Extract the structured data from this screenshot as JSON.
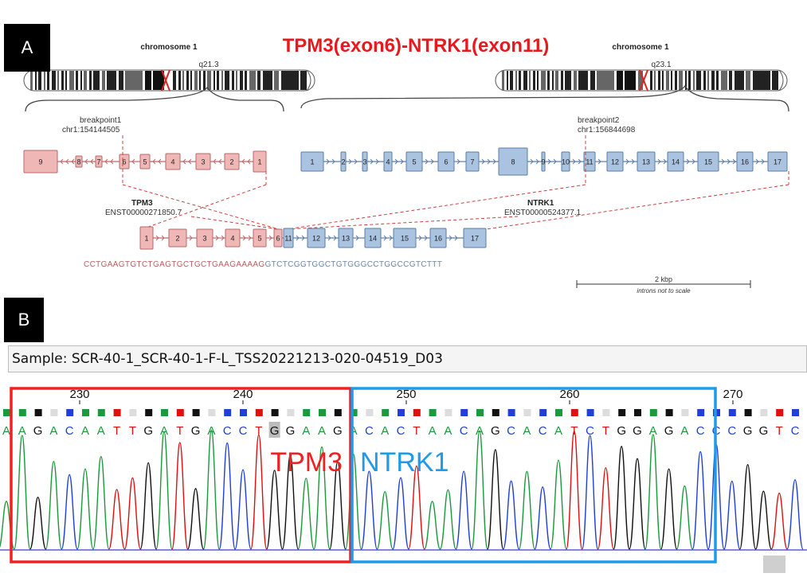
{
  "panel_a": {
    "label": "A",
    "title": "TPM3(exon6)-NTRK1(exon11)",
    "chrom_left": {
      "name": "chromosome 1",
      "band": "q21.3"
    },
    "chrom_right": {
      "name": "chromosome 1",
      "band": "q23.1"
    },
    "breakpoint1": {
      "label": "breakpoint1",
      "pos": "chr1:154144505"
    },
    "breakpoint2": {
      "label": "breakpoint2",
      "pos": "chr1:156844698"
    },
    "gene1": {
      "name": "TPM3",
      "transcript": "ENST00000271850.7"
    },
    "gene2": {
      "name": "NTRK1",
      "transcript": "ENST00000524377.1"
    },
    "tpm3_exons": [
      "9",
      "8",
      "7",
      "6",
      "5",
      "4",
      "3",
      "2",
      "1"
    ],
    "ntrk1_exons": [
      "1",
      "2",
      "3",
      "4",
      "5",
      "6",
      "7",
      "8",
      "9",
      "10",
      "11",
      "12",
      "13",
      "14",
      "15",
      "16",
      "17"
    ],
    "fusion_exons_tpm3": [
      "1",
      "2",
      "3",
      "4",
      "5",
      "6"
    ],
    "fusion_exons_ntrk1": [
      "11",
      "12",
      "13",
      "14",
      "15",
      "16",
      "17"
    ],
    "junction_seq_left": "CCTGAAGTGTCTGAGTGCTGCTGAAGAAAAG",
    "junction_seq_right": "GTCTCGGTGGCTGTGGGCCTGGCCGTCTTT",
    "scale_label": "2 kbp",
    "scale_note": "introns not to scale",
    "colors": {
      "tpm3": "#f0b7b7",
      "tpm3_edge": "#b76a6a",
      "ntrk1": "#a9c3e0",
      "ntrk1_edge": "#5a7ea6",
      "title": "#e8191c"
    }
  },
  "panel_b": {
    "label": "B",
    "sample": "Sample: SCR-40-1_SCR-40-1-F-L_TSS20221213-020-04519_D03",
    "positions": [
      "230",
      "240",
      "250",
      "260",
      "270"
    ],
    "sequence": "AAGACAATTGATGACCTGGAAGACACTAACAGCACATCTGGAGACCCGGTC",
    "tpm3_label": "TPM3",
    "ntrk1_label": "NTRK1",
    "colors": {
      "A": "#1a9a3a",
      "C": "#1f3fd6",
      "G": "#111111",
      "T": "#e01010",
      "tpm3_box": "#f02020",
      "ntrk1_box": "#1e9ae8"
    }
  }
}
